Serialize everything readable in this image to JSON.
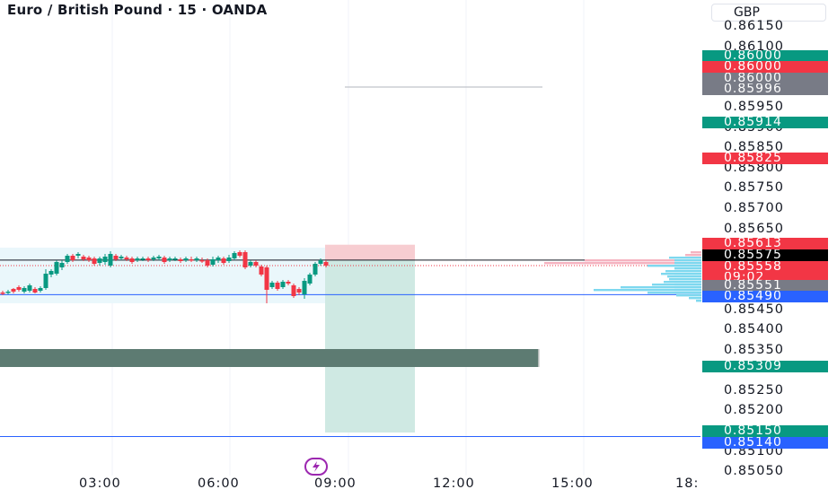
{
  "header": {
    "title": "Euro / British Pound · 15 · OANDA",
    "currency": "GBP"
  },
  "colors": {
    "up": "#089981",
    "down": "#f23645",
    "grid": "#f0f3fa",
    "blue_line": "#2962ff",
    "black_line": "#131722",
    "zone": "#5d7b72",
    "sl_zone": "#f7cdd1",
    "tp_zone": "#cfe9e3",
    "volume_pink": "#f5b3c0",
    "volume_cyan": "#7ed8ef"
  },
  "price_axis": {
    "labels": [
      "0.86150",
      "0.86100",
      "0.85950",
      "0.85900",
      "0.85850",
      "0.85800",
      "0.85750",
      "0.85700",
      "0.85650",
      "0.85450",
      "0.85400",
      "0.85350",
      "0.85250",
      "0.85200",
      "0.85100",
      "0.85050"
    ],
    "badges": [
      {
        "text": "0.86000",
        "color": "#089981"
      },
      {
        "text": "0.86000",
        "color": "#f23645"
      },
      {
        "text": "0.86000",
        "color": "#787b86"
      },
      {
        "text": "0.85996",
        "color": "#787b86"
      },
      {
        "text": "0.85914",
        "color": "#089981"
      },
      {
        "text": "0.85825",
        "color": "#f23645"
      },
      {
        "text": "0.85613",
        "color": "#f23645"
      },
      {
        "text": "0.85575",
        "color": "#000000"
      },
      {
        "text": "0.85558",
        "color": "#f23645"
      },
      {
        "text": "09:02",
        "color": "#f23645"
      },
      {
        "text": "0.85551",
        "color": "#787b86"
      },
      {
        "text": "0.85490",
        "color": "#2962ff"
      },
      {
        "text": "0.85309",
        "color": "#089981"
      },
      {
        "text": "0.85150",
        "color": "#089981"
      },
      {
        "text": "0.85140",
        "color": "#2962ff"
      }
    ]
  },
  "time_axis": {
    "labels": [
      "03:00",
      "06:00",
      "09:00",
      "12:00",
      "15:00",
      "18:"
    ]
  },
  "position_tool": {
    "entry": 0.85575,
    "stop": 0.85613,
    "target": 0.8515
  },
  "lines": {
    "current_price": 0.85575,
    "support": 0.8549,
    "lower": 0.8514
  },
  "zone": {
    "top": 0.85335,
    "bottom": 0.85309
  },
  "icons": {
    "bolt": "lightning-bolt-icon"
  }
}
